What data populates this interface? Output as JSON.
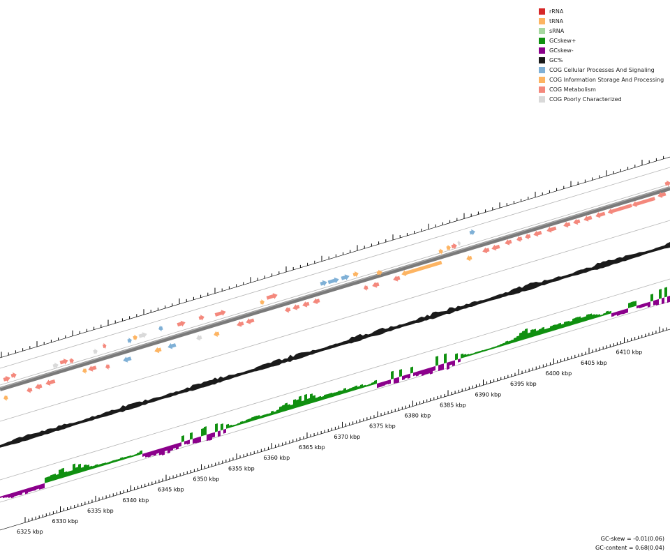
{
  "legend": [
    {
      "label": "rRNA",
      "color": "#d62728"
    },
    {
      "label": "tRNA",
      "color": "#fdb462"
    },
    {
      "label": "sRNA",
      "color": "#a6d8a0"
    },
    {
      "label": "GCskew+",
      "color": "#109010"
    },
    {
      "label": "GCskew-",
      "color": "#8b008b"
    },
    {
      "label": "GC%",
      "color": "#1a1a1a"
    },
    {
      "label": "COG Cellular Processes And Signaling",
      "color": "#7fb0d6"
    },
    {
      "label": "COG Information Storage And Processing",
      "color": "#fdb462"
    },
    {
      "label": "COG Metabolism",
      "color": "#f4887c"
    },
    {
      "label": "COG Poorly Characterized",
      "color": "#d9d9d9"
    }
  ],
  "kbp_labels": [
    "6325 kbp",
    "6330 kbp",
    "6335 kbp",
    "6340 kbp",
    "6345 kbp",
    "6350 kbp",
    "6355 kbp",
    "6360 kbp",
    "6365 kbp",
    "6370 kbp",
    "6375 kbp",
    "6380 kbp",
    "6385 kbp",
    "6390 kbp",
    "6395 kbp",
    "6400 kbp",
    "6405 kbp",
    "6410 kbp"
  ],
  "stats": {
    "gc_skew": "GC-skew = -0.01(0.06)",
    "gc_content": "GC-content = 0.68(0.04)"
  },
  "track_colors": {
    "backbone": "#7a7a7a",
    "gc_content": "#1a1a1a",
    "gc_skew_pos": "#109010",
    "gc_skew_neg": "#8b008b",
    "guide": "#b4b4b4"
  }
}
